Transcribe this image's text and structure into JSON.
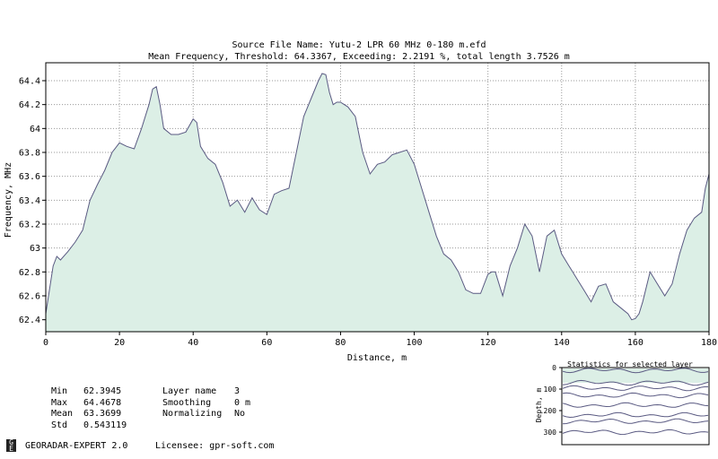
{
  "header": {
    "line1": "Source File Name: Yutu-2 LPR 60 MHz 0-180 m.efd",
    "line2": "Mean Frequency, Threshold: 64.3367, Exceeding: 2.2191 %, total length 3.7526 m"
  },
  "chart_data": {
    "type": "area",
    "xlabel": "Distance, m",
    "ylabel": "Frequency, MHz",
    "xlim": [
      0,
      180
    ],
    "ylim": [
      62.3,
      64.55
    ],
    "xticks": [
      "0",
      "20",
      "40",
      "60",
      "80",
      "100",
      "120",
      "140",
      "160",
      "180"
    ],
    "yticks": [
      "62.4",
      "62.6",
      "62.8",
      "63",
      "63.2",
      "63.4",
      "63.6",
      "63.8",
      "64",
      "64.2",
      "64.4"
    ],
    "grid": true,
    "fill_color": "#dcefe6",
    "line_color": "#5a5a82",
    "x": [
      0,
      1,
      2,
      3,
      4,
      6,
      8,
      10,
      12,
      14,
      16,
      18,
      20,
      22,
      24,
      26,
      28,
      29,
      30,
      31,
      32,
      34,
      36,
      38,
      40,
      41,
      42,
      44,
      46,
      48,
      50,
      52,
      54,
      56,
      58,
      60,
      62,
      64,
      66,
      68,
      70,
      72,
      74,
      75,
      76,
      77,
      78,
      79,
      80,
      82,
      84,
      86,
      88,
      90,
      92,
      94,
      96,
      98,
      100,
      102,
      104,
      106,
      108,
      110,
      112,
      114,
      116,
      118,
      120,
      121,
      122,
      124,
      126,
      128,
      130,
      132,
      134,
      136,
      138,
      140,
      142,
      144,
      146,
      148,
      150,
      152,
      154,
      156,
      158,
      159,
      160,
      161,
      162,
      164,
      166,
      168,
      170,
      172,
      174,
      176,
      178,
      179,
      180
    ],
    "y": [
      62.45,
      62.65,
      62.85,
      62.93,
      62.9,
      62.97,
      63.05,
      63.15,
      63.4,
      63.53,
      63.65,
      63.8,
      63.88,
      63.85,
      63.83,
      64.0,
      64.2,
      64.33,
      64.35,
      64.2,
      64.0,
      63.95,
      63.95,
      63.97,
      64.08,
      64.05,
      63.85,
      63.75,
      63.7,
      63.55,
      63.35,
      63.4,
      63.3,
      63.42,
      63.32,
      63.28,
      63.45,
      63.48,
      63.5,
      63.8,
      64.1,
      64.25,
      64.4,
      64.46,
      64.45,
      64.3,
      64.2,
      64.22,
      64.22,
      64.18,
      64.1,
      63.8,
      63.62,
      63.7,
      63.72,
      63.78,
      63.8,
      63.82,
      63.7,
      63.5,
      63.3,
      63.1,
      62.95,
      62.9,
      62.8,
      62.65,
      62.62,
      62.62,
      62.78,
      62.8,
      62.8,
      62.6,
      62.85,
      63.0,
      63.2,
      63.1,
      62.8,
      63.1,
      63.15,
      62.95,
      62.85,
      62.75,
      62.65,
      62.55,
      62.68,
      62.7,
      62.55,
      62.5,
      62.45,
      62.4,
      62.41,
      62.45,
      62.55,
      62.8,
      62.7,
      62.6,
      62.7,
      62.95,
      63.15,
      63.25,
      63.3,
      63.5,
      63.62
    ]
  },
  "stats": {
    "min_label": "Min",
    "min_value": "62.3945",
    "max_label": "Max",
    "max_value": "64.4678",
    "mean_label": "Mean",
    "mean_value": "63.3699",
    "std_label": "Std",
    "std_value": "0.543119"
  },
  "layer_info": {
    "layer_label": "Layer name",
    "layer_value": "3",
    "smoothing_label": "Smoothing",
    "smoothing_value": "0 m",
    "normalizing_label": "Normalizing",
    "normalizing_value": "No"
  },
  "inset": {
    "title": "Statistics for selected layer",
    "ylabel": "Depth, m",
    "yticks": [
      "0",
      "100",
      "200",
      "300"
    ]
  },
  "footer": {
    "app_name": "GEORADAR-EXPERT 2.0",
    "licensee": "Licensee: gpr-soft.com"
  }
}
